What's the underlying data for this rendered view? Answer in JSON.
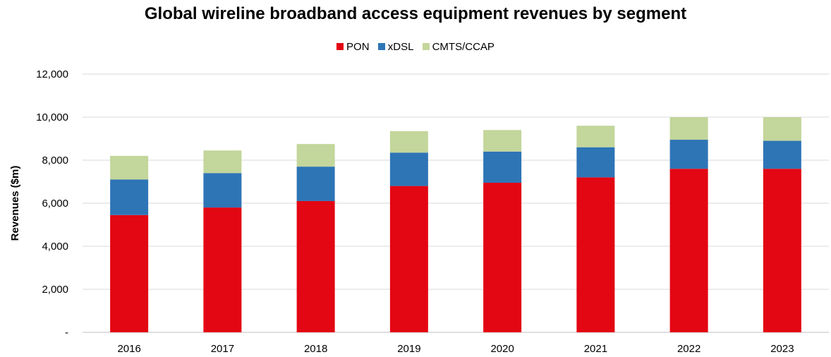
{
  "chart_data": {
    "type": "bar",
    "stacked": true,
    "title": "Global wireline broadband access equipment revenues by segment",
    "xlabel": "",
    "ylabel": "Revenues ($m)",
    "categories": [
      "2016",
      "2017",
      "2018",
      "2019",
      "2020",
      "2021",
      "2022",
      "2023"
    ],
    "series": [
      {
        "name": "PON",
        "color": "#e30613",
        "values": [
          5450,
          5800,
          6100,
          6800,
          6950,
          7200,
          7600,
          7600
        ]
      },
      {
        "name": "xDSL",
        "color": "#2e75b6",
        "values": [
          1650,
          1600,
          1600,
          1550,
          1450,
          1400,
          1350,
          1300
        ]
      },
      {
        "name": "CMTS/CCAP",
        "color": "#c3d69b",
        "values": [
          1100,
          1050,
          1050,
          1000,
          1000,
          1000,
          1050,
          1100
        ]
      }
    ],
    "ylim": [
      0,
      12000
    ],
    "yticks": [
      0,
      2000,
      4000,
      6000,
      8000,
      10000,
      12000
    ],
    "ytick_labels": [
      "-",
      "2,000",
      "4,000",
      "6,000",
      "8,000",
      "10,000",
      "12,000"
    ],
    "grid": true,
    "legend_position": "top"
  }
}
